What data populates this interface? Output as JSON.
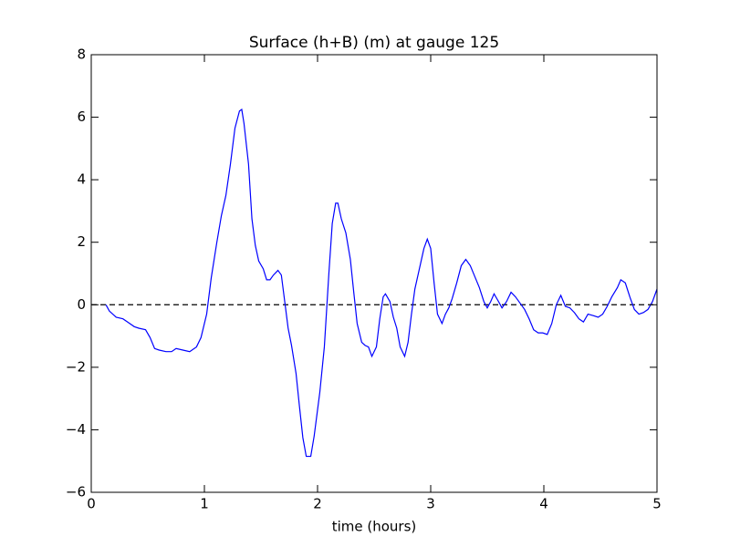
{
  "chart_data": {
    "type": "line",
    "title": "Surface (h+B) (m) at gauge 125",
    "x_label": "time (hours)",
    "x": [
      0.13,
      0.16,
      0.22,
      0.28,
      0.32,
      0.38,
      0.42,
      0.48,
      0.52,
      0.56,
      0.6,
      0.66,
      0.71,
      0.75,
      0.81,
      0.87,
      0.93,
      0.97,
      1.02,
      1.06,
      1.11,
      1.15,
      1.19,
      1.23,
      1.27,
      1.31,
      1.33,
      1.35,
      1.39,
      1.42,
      1.45,
      1.48,
      1.52,
      1.55,
      1.58,
      1.61,
      1.65,
      1.68,
      1.71,
      1.74,
      1.77,
      1.81,
      1.84,
      1.87,
      1.9,
      1.94,
      1.97,
      2.02,
      2.06,
      2.1,
      2.13,
      2.16,
      2.18,
      2.21,
      2.25,
      2.29,
      2.32,
      2.35,
      2.39,
      2.42,
      2.45,
      2.48,
      2.52,
      2.55,
      2.58,
      2.6,
      2.64,
      2.67,
      2.7,
      2.73,
      2.77,
      2.8,
      2.83,
      2.86,
      2.9,
      2.94,
      2.97,
      3.0,
      3.03,
      3.06,
      3.1,
      3.13,
      3.16,
      3.19,
      3.23,
      3.27,
      3.31,
      3.35,
      3.39,
      3.43,
      3.47,
      3.5,
      3.53,
      3.56,
      3.6,
      3.63,
      3.67,
      3.71,
      3.75,
      3.79,
      3.83,
      3.87,
      3.91,
      3.95,
      3.99,
      4.03,
      4.07,
      4.11,
      4.15,
      4.19,
      4.23,
      4.27,
      4.31,
      4.35,
      4.39,
      4.44,
      4.48,
      4.52,
      4.56,
      4.6,
      4.65,
      4.68,
      4.72,
      4.76,
      4.8,
      4.84,
      4.88,
      4.92,
      4.96,
      5.0
    ],
    "values": [
      0,
      -0.2,
      -0.4,
      -0.45,
      -0.55,
      -0.7,
      -0.75,
      -0.8,
      -1.05,
      -1.4,
      -1.45,
      -1.5,
      -1.5,
      -1.4,
      -1.45,
      -1.5,
      -1.35,
      -1.05,
      -0.3,
      0.85,
      2.0,
      2.85,
      3.5,
      4.5,
      5.65,
      6.2,
      6.25,
      5.8,
      4.5,
      2.75,
      1.9,
      1.4,
      1.15,
      0.8,
      0.8,
      0.95,
      1.1,
      0.95,
      0.1,
      -0.75,
      -1.3,
      -2.2,
      -3.25,
      -4.25,
      -4.85,
      -4.85,
      -4.2,
      -2.8,
      -1.35,
      1.0,
      2.6,
      3.25,
      3.25,
      2.75,
      2.3,
      1.45,
      0.4,
      -0.6,
      -1.2,
      -1.3,
      -1.35,
      -1.65,
      -1.35,
      -0.45,
      0.25,
      0.35,
      0.1,
      -0.4,
      -0.75,
      -1.35,
      -1.65,
      -1.2,
      -0.3,
      0.5,
      1.15,
      1.8,
      2.1,
      1.8,
      0.7,
      -0.3,
      -0.6,
      -0.3,
      -0.1,
      0.2,
      0.7,
      1.25,
      1.45,
      1.25,
      0.9,
      0.55,
      0.1,
      -0.1,
      0.1,
      0.35,
      0.1,
      -0.1,
      0.1,
      0.4,
      0.25,
      0.05,
      -0.15,
      -0.45,
      -0.8,
      -0.9,
      -0.9,
      -0.95,
      -0.6,
      0.0,
      0.3,
      -0.05,
      -0.1,
      -0.25,
      -0.45,
      -0.55,
      -0.3,
      -0.35,
      -0.4,
      -0.3,
      -0.05,
      0.25,
      0.55,
      0.8,
      0.7,
      0.25,
      -0.15,
      -0.3,
      -0.25,
      -0.15,
      0.1,
      0.5
    ],
    "color": "#0000ff",
    "reference_line": {
      "y": 0,
      "style": "dashed",
      "color": "#000000"
    },
    "xlim": [
      0,
      5
    ],
    "xticks": [
      0,
      1,
      2,
      3,
      4,
      5
    ],
    "ylim": [
      -6,
      8
    ],
    "yticks": [
      {
        "value": -6,
        "label": "−6"
      },
      {
        "value": -4,
        "label": "−4"
      },
      {
        "value": -2,
        "label": "−2"
      },
      0,
      2,
      4,
      6,
      8
    ],
    "grid": false
  }
}
